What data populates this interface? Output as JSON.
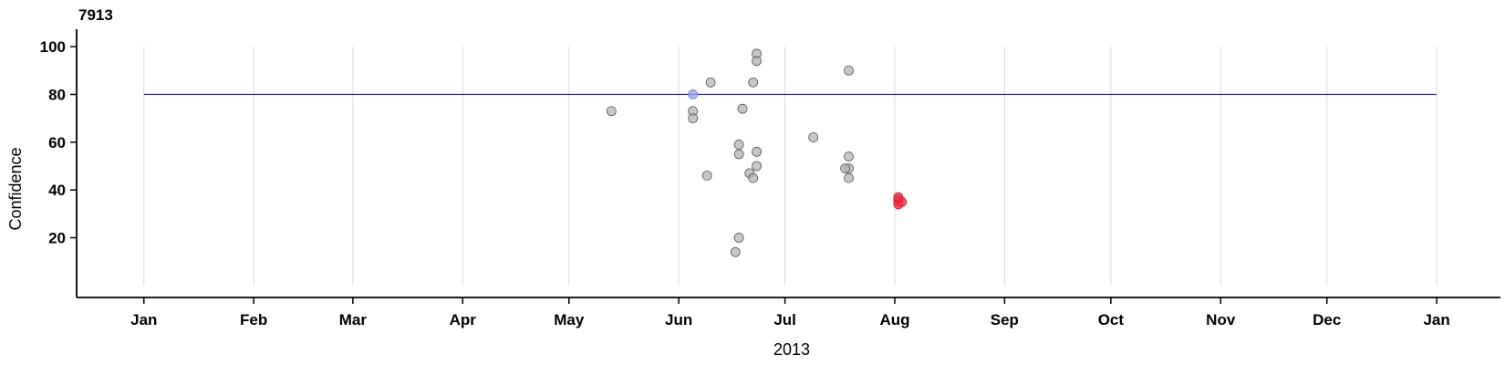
{
  "chart_data": {
    "type": "scatter",
    "title": "7913",
    "xlabel": "2013",
    "ylabel": "Confidence",
    "x_tick_labels": [
      "Jan",
      "Feb",
      "Mar",
      "Apr",
      "May",
      "Jun",
      "Jul",
      "Aug",
      "Sep",
      "Oct",
      "Nov",
      "Dec",
      "Jan"
    ],
    "x_ticks": [
      "2013-01-01",
      "2013-02-01",
      "2013-03-01",
      "2013-04-01",
      "2013-05-01",
      "2013-06-01",
      "2013-07-01",
      "2013-08-01",
      "2013-09-01",
      "2013-10-01",
      "2013-11-01",
      "2013-12-01",
      "2014-01-01"
    ],
    "y_ticks": [
      20,
      40,
      60,
      80,
      100
    ],
    "xlim": [
      "2012-12-13",
      "2014-01-19"
    ],
    "ylim": [
      -5,
      105
    ],
    "grid": "vertical",
    "threshold": 80,
    "colors": {
      "threshold_line": "#1f1f8f",
      "grid": "#d9d9d9",
      "point_fill": "#b4b4b4",
      "point_stroke": "#555555",
      "highlight_below": "#ee3344",
      "highlight_above": "#9aa4e8"
    },
    "points": [
      {
        "x": "2013-05-13",
        "y": 73,
        "group": "normal"
      },
      {
        "x": "2013-06-05",
        "y": 80,
        "group": "threshold"
      },
      {
        "x": "2013-06-05",
        "y": 73,
        "group": "normal"
      },
      {
        "x": "2013-06-05",
        "y": 70,
        "group": "normal"
      },
      {
        "x": "2013-06-09",
        "y": 46,
        "group": "normal"
      },
      {
        "x": "2013-06-10",
        "y": 85,
        "group": "normal"
      },
      {
        "x": "2013-06-17",
        "y": 14,
        "group": "normal"
      },
      {
        "x": "2013-06-18",
        "y": 59,
        "group": "normal"
      },
      {
        "x": "2013-06-18",
        "y": 55,
        "group": "normal"
      },
      {
        "x": "2013-06-18",
        "y": 20,
        "group": "normal"
      },
      {
        "x": "2013-06-19",
        "y": 74,
        "group": "normal"
      },
      {
        "x": "2013-06-21",
        "y": 47,
        "group": "normal"
      },
      {
        "x": "2013-06-22",
        "y": 85,
        "group": "normal"
      },
      {
        "x": "2013-06-22",
        "y": 45,
        "group": "normal"
      },
      {
        "x": "2013-06-23",
        "y": 97,
        "group": "normal"
      },
      {
        "x": "2013-06-23",
        "y": 94,
        "group": "normal"
      },
      {
        "x": "2013-06-23",
        "y": 56,
        "group": "normal"
      },
      {
        "x": "2013-06-23",
        "y": 50,
        "group": "normal"
      },
      {
        "x": "2013-07-09",
        "y": 62,
        "group": "normal"
      },
      {
        "x": "2013-07-19",
        "y": 90,
        "group": "normal"
      },
      {
        "x": "2013-07-19",
        "y": 54,
        "group": "normal"
      },
      {
        "x": "2013-07-19",
        "y": 49,
        "group": "normal"
      },
      {
        "x": "2013-07-19",
        "y": 45,
        "group": "normal"
      },
      {
        "x": "2013-07-18",
        "y": 49,
        "group": "normal"
      },
      {
        "x": "2013-08-02",
        "y": 35,
        "group": "highlight"
      },
      {
        "x": "2013-08-02",
        "y": 36,
        "group": "highlight"
      },
      {
        "x": "2013-08-02",
        "y": 34,
        "group": "highlight"
      },
      {
        "x": "2013-08-03",
        "y": 35,
        "group": "highlight"
      },
      {
        "x": "2013-08-02",
        "y": 37,
        "group": "highlight"
      }
    ]
  }
}
